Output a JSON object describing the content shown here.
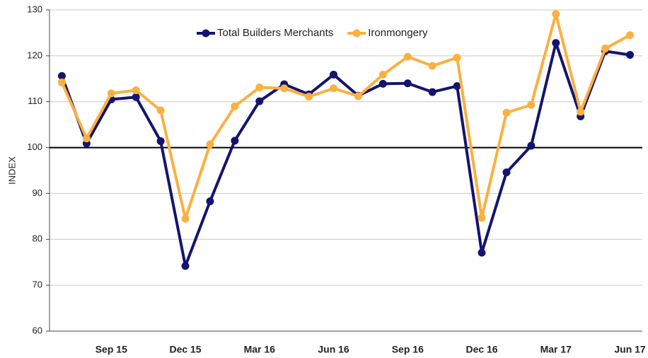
{
  "chart_data": {
    "type": "line",
    "y_label": "INDEX",
    "categories": [
      null,
      null,
      "Sep 15",
      null,
      null,
      "Dec 15",
      null,
      null,
      "Mar 16",
      null,
      null,
      "Jun 16",
      null,
      null,
      "Sep 16",
      null,
      null,
      "Dec 16",
      null,
      null,
      "Mar 17",
      null,
      null,
      "Jun 17"
    ],
    "series": [
      {
        "name": "Total Builders Merchants",
        "color": "#14146e",
        "values": [
          115.6,
          100.9,
          110.5,
          111.0,
          101.4,
          74.2,
          88.3,
          101.5,
          110.1,
          113.8,
          111.6,
          115.9,
          111.3,
          113.9,
          114.0,
          112.1,
          113.4,
          77.1,
          94.6,
          100.4,
          122.8,
          106.8,
          121.0,
          120.2
        ]
      },
      {
        "name": "Ironmongery",
        "color": "#fbb040",
        "values": [
          114.2,
          102.0,
          111.8,
          112.5,
          108.1,
          84.5,
          100.7,
          109.0,
          113.1,
          112.9,
          111.1,
          112.9,
          111.2,
          115.9,
          119.8,
          117.8,
          119.6,
          84.7,
          107.6,
          109.3,
          129.1,
          107.8,
          121.6,
          124.5
        ]
      }
    ],
    "ylim": [
      60,
      130
    ],
    "yticks": [
      60,
      70,
      80,
      90,
      100,
      110,
      120,
      130
    ],
    "reference_line": 100,
    "grid": true,
    "legend": "top"
  }
}
